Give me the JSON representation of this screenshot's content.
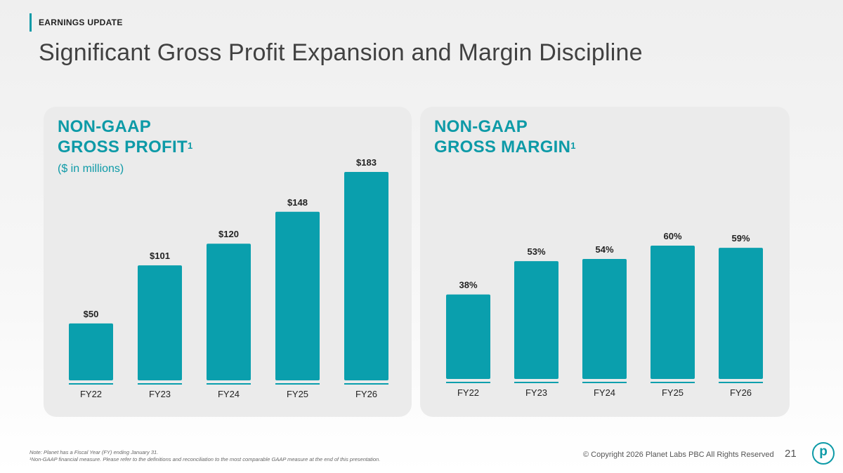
{
  "header": {
    "eyebrow": "EARNINGS UPDATE",
    "title": "Significant Gross Profit Expansion and Margin Discipline"
  },
  "footer": {
    "note1": "Note: Planet has a Fiscal Year (FY) ending January 31.",
    "note2": "¹Non-GAAP financial measure. Please refer to the definitions and reconciliation to the most comparable GAAP measure at the end of this presentation.",
    "copyright": "© Copyright 2026 Planet Labs PBC  All Rights Reserved",
    "page_number": "21",
    "logo_letter": "p"
  },
  "colors": {
    "accent": "#0d9aa7",
    "bar": "#0a9fad"
  },
  "chart_data": [
    {
      "type": "bar",
      "title_line1": "NON-GAAP",
      "title_line2": "GROSS PROFIT",
      "title_sup": "1",
      "subtitle": "($ in millions)",
      "categories": [
        "FY22",
        "FY23",
        "FY24",
        "FY25",
        "FY26"
      ],
      "values": [
        50,
        101,
        120,
        148,
        183
      ],
      "value_labels": [
        "$50",
        "$101",
        "$120",
        "$148",
        "$183"
      ],
      "ylim": [
        0,
        183
      ]
    },
    {
      "type": "bar",
      "title_line1": "NON-GAAP",
      "title_line2": "GROSS MARGIN",
      "title_sup": "1",
      "categories": [
        "FY22",
        "FY23",
        "FY24",
        "FY25",
        "FY26"
      ],
      "values": [
        38,
        53,
        54,
        60,
        59
      ],
      "value_labels": [
        "38%",
        "53%",
        "54%",
        "60%",
        "59%"
      ],
      "ylim": [
        0,
        60
      ]
    }
  ]
}
